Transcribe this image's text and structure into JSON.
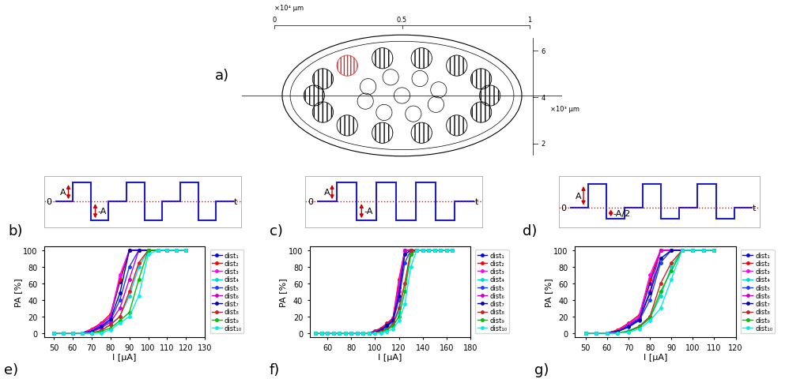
{
  "nerve_diagram": {
    "panel": "a)",
    "top_ticks": [
      0,
      0.5,
      1
    ],
    "top_unit": "×10⁴ μm",
    "side_ticks": [
      2,
      4,
      6
    ],
    "side_unit": "×10³ μm"
  },
  "waveforms": [
    {
      "panel": "b)",
      "levels": [
        0,
        1,
        -1,
        0,
        1,
        -1,
        0,
        1,
        -1,
        0
      ],
      "arrows": [
        {
          "label": "A",
          "value": 1
        },
        {
          "label": "-A",
          "value": -1
        }
      ],
      "zero_label": "0",
      "time_label": "t"
    },
    {
      "panel": "c)",
      "levels": [
        0,
        1,
        -1,
        1,
        -1,
        1,
        -1,
        0
      ],
      "arrows": [
        {
          "label": "A",
          "value": 1
        },
        {
          "label": "-A",
          "value": -1
        }
      ],
      "zero_label": "0",
      "time_label": "t"
    },
    {
      "panel": "d)",
      "levels": [
        0,
        1,
        -0.5,
        0,
        1,
        -0.5,
        0,
        1,
        -0.5,
        0
      ],
      "arrows": [
        {
          "label": "A",
          "value": 1
        },
        {
          "label": "-A/2",
          "value": -0.5
        }
      ],
      "zero_label": "0",
      "time_label": "t"
    }
  ],
  "chart_data": [
    {
      "type": "line",
      "panel": "e)",
      "x_label": "I [μA]",
      "y_label": "PA [%]",
      "x": [
        50,
        55,
        60,
        65,
        70,
        75,
        80,
        85,
        90,
        95,
        100,
        105,
        110,
        115,
        120
      ],
      "xlim": [
        45,
        130
      ],
      "xticks": [
        50,
        60,
        70,
        80,
        90,
        100,
        110,
        120,
        130
      ],
      "ylim": [
        -5,
        105
      ],
      "yticks": [
        0,
        20,
        40,
        60,
        80,
        100
      ],
      "grid": false,
      "legend": "right",
      "marker": "circle",
      "line_style": "solid",
      "series": [
        {
          "name": "dist₁",
          "color": "#0000ff",
          "values": [
            0,
            0,
            0,
            0,
            3,
            10,
            20,
            62,
            100,
            100,
            100,
            100,
            100,
            100,
            100
          ]
        },
        {
          "name": "dist₂",
          "color": "#ff0000",
          "values": [
            0,
            0,
            0,
            0,
            5,
            12,
            23,
            65,
            100,
            100,
            100,
            100,
            100,
            100,
            100
          ]
        },
        {
          "name": "dist₃",
          "color": "#ff00ff",
          "values": [
            0,
            0,
            0,
            0,
            4,
            11,
            20,
            70,
            100,
            100,
            100,
            100,
            100,
            100,
            100
          ]
        },
        {
          "name": "dist₄",
          "color": "#00d8d8",
          "values": [
            0,
            0,
            0,
            0,
            0,
            3,
            10,
            20,
            45,
            80,
            100,
            100,
            100,
            100,
            100
          ]
        },
        {
          "name": "dist₅",
          "color": "#1a3cff",
          "values": [
            0,
            0,
            0,
            0,
            2,
            7,
            15,
            40,
            80,
            100,
            100,
            100,
            100,
            100,
            100
          ]
        },
        {
          "name": "dist₆",
          "color": "#cc00cc",
          "values": [
            0,
            0,
            0,
            0,
            1,
            6,
            13,
            30,
            65,
            100,
            100,
            100,
            100,
            100,
            100
          ]
        },
        {
          "name": "dist₇",
          "color": "#0000b0",
          "values": [
            0,
            0,
            0,
            0,
            2,
            8,
            17,
            48,
            100,
            100,
            100,
            100,
            100,
            100,
            100
          ]
        },
        {
          "name": "dist₈",
          "color": "#d02020",
          "values": [
            0,
            0,
            0,
            0,
            0,
            3,
            10,
            20,
            50,
            85,
            100,
            100,
            100,
            100,
            100
          ]
        },
        {
          "name": "dist₉",
          "color": "#00c000",
          "values": [
            0,
            0,
            0,
            0,
            0,
            2,
            6,
            15,
            25,
            65,
            100,
            100,
            100,
            100,
            100
          ]
        },
        {
          "name": "dist₁₀",
          "color": "#00eeee",
          "values": [
            0,
            0,
            0,
            0,
            0,
            0,
            4,
            12,
            20,
            45,
            95,
            100,
            100,
            100,
            100
          ]
        }
      ]
    },
    {
      "type": "line",
      "panel": "f)",
      "x_label": "I [μA]",
      "y_label": "PA [%]",
      "x": [
        50,
        55,
        60,
        65,
        70,
        75,
        80,
        85,
        90,
        95,
        100,
        105,
        110,
        115,
        120,
        125,
        130,
        135,
        140,
        145,
        150,
        155,
        160,
        165
      ],
      "xlim": [
        45,
        180
      ],
      "xticks": [
        60,
        80,
        100,
        120,
        140,
        160,
        180
      ],
      "ylim": [
        -5,
        105
      ],
      "yticks": [
        0,
        20,
        40,
        60,
        80,
        100
      ],
      "grid": false,
      "legend": "right",
      "marker": "circle",
      "line_style": "solid",
      "series": [
        {
          "name": "dist₁",
          "color": "#0000ff",
          "values": [
            0,
            0,
            0,
            0,
            0,
            0,
            0,
            0,
            0,
            0,
            2,
            4,
            8,
            15,
            55,
            100,
            100,
            100,
            100,
            100,
            100,
            100,
            100,
            100
          ]
        },
        {
          "name": "dist₂",
          "color": "#ff0000",
          "values": [
            0,
            0,
            0,
            0,
            0,
            0,
            0,
            0,
            0,
            0,
            3,
            6,
            12,
            18,
            65,
            100,
            100,
            100,
            100,
            100,
            100,
            100,
            100,
            100
          ]
        },
        {
          "name": "dist₃",
          "color": "#ff00ff",
          "values": [
            0,
            0,
            0,
            0,
            0,
            0,
            0,
            0,
            0,
            0,
            2,
            5,
            10,
            16,
            60,
            100,
            100,
            100,
            100,
            100,
            100,
            100,
            100,
            100
          ]
        },
        {
          "name": "dist₄",
          "color": "#00d8d8",
          "values": [
            0,
            0,
            0,
            0,
            0,
            0,
            0,
            0,
            0,
            0,
            0,
            2,
            6,
            12,
            25,
            60,
            95,
            100,
            100,
            100,
            100,
            100,
            100,
            100
          ]
        },
        {
          "name": "dist₅",
          "color": "#1a3cff",
          "values": [
            0,
            0,
            0,
            0,
            0,
            0,
            0,
            0,
            0,
            0,
            1,
            3,
            8,
            14,
            40,
            85,
            100,
            100,
            100,
            100,
            100,
            100,
            100,
            100
          ]
        },
        {
          "name": "dist₆",
          "color": "#cc00cc",
          "values": [
            0,
            0,
            0,
            0,
            0,
            0,
            0,
            0,
            0,
            0,
            2,
            5,
            10,
            18,
            50,
            100,
            100,
            100,
            100,
            100,
            100,
            100,
            100,
            100
          ]
        },
        {
          "name": "dist₇",
          "color": "#0000b0",
          "values": [
            0,
            0,
            0,
            0,
            0,
            0,
            0,
            0,
            0,
            0,
            1,
            4,
            9,
            16,
            45,
            95,
            100,
            100,
            100,
            100,
            100,
            100,
            100,
            100
          ]
        },
        {
          "name": "dist₈",
          "color": "#d02020",
          "values": [
            0,
            0,
            0,
            0,
            0,
            0,
            0,
            0,
            0,
            0,
            0,
            2,
            5,
            10,
            30,
            60,
            100,
            100,
            100,
            100,
            100,
            100,
            100,
            100
          ]
        },
        {
          "name": "dist₉",
          "color": "#00c000",
          "values": [
            0,
            0,
            0,
            0,
            0,
            0,
            0,
            0,
            0,
            0,
            0,
            1,
            4,
            8,
            20,
            50,
            95,
            100,
            100,
            100,
            100,
            100,
            100,
            100
          ]
        },
        {
          "name": "dist₁₀",
          "color": "#00eeee",
          "values": [
            0,
            0,
            0,
            0,
            0,
            0,
            0,
            0,
            0,
            0,
            0,
            0,
            2,
            5,
            15,
            35,
            80,
            100,
            100,
            100,
            100,
            100,
            100,
            100
          ]
        }
      ]
    },
    {
      "type": "line",
      "panel": "g)",
      "x_label": "I [μA]",
      "y_label": "PA [%]",
      "x": [
        50,
        55,
        60,
        65,
        70,
        75,
        80,
        85,
        90,
        95,
        100,
        105,
        110
      ],
      "xlim": [
        45,
        120
      ],
      "xticks": [
        50,
        60,
        70,
        80,
        90,
        100,
        110,
        120
      ],
      "ylim": [
        -5,
        105
      ],
      "yticks": [
        0,
        20,
        40,
        60,
        80,
        100
      ],
      "grid": false,
      "legend": "right",
      "marker": "circle",
      "line_style": "solid",
      "series": [
        {
          "name": "dist₁",
          "color": "#0000ff",
          "values": [
            0,
            0,
            0,
            3,
            10,
            18,
            60,
            100,
            100,
            100,
            100,
            100,
            100
          ]
        },
        {
          "name": "dist₂",
          "color": "#ff0000",
          "values": [
            0,
            0,
            0,
            4,
            12,
            22,
            65,
            100,
            100,
            100,
            100,
            100,
            100
          ]
        },
        {
          "name": "dist₃",
          "color": "#ff00ff",
          "values": [
            0,
            0,
            0,
            3,
            11,
            20,
            70,
            100,
            100,
            100,
            100,
            100,
            100
          ]
        },
        {
          "name": "dist₄",
          "color": "#00d8d8",
          "values": [
            0,
            0,
            0,
            0,
            3,
            8,
            18,
            45,
            80,
            100,
            100,
            100,
            100
          ]
        },
        {
          "name": "dist₅",
          "color": "#1a3cff",
          "values": [
            0,
            0,
            0,
            2,
            7,
            15,
            40,
            85,
            100,
            100,
            100,
            100,
            100
          ]
        },
        {
          "name": "dist₆",
          "color": "#cc00cc",
          "values": [
            0,
            0,
            0,
            2,
            8,
            17,
            50,
            100,
            100,
            100,
            100,
            100,
            100
          ]
        },
        {
          "name": "dist₇",
          "color": "#0000b0",
          "values": [
            0,
            0,
            0,
            2,
            8,
            16,
            48,
            90,
            100,
            100,
            100,
            100,
            100
          ]
        },
        {
          "name": "dist₈",
          "color": "#d02020",
          "values": [
            0,
            0,
            0,
            0,
            2,
            8,
            20,
            60,
            85,
            100,
            100,
            100,
            100
          ]
        },
        {
          "name": "dist₉",
          "color": "#00c000",
          "values": [
            0,
            0,
            0,
            0,
            2,
            7,
            18,
            50,
            75,
            100,
            100,
            100,
            100
          ]
        },
        {
          "name": "dist₁₀",
          "color": "#00eeee",
          "values": [
            0,
            0,
            0,
            0,
            1,
            5,
            15,
            30,
            65,
            100,
            100,
            100,
            100
          ]
        }
      ]
    }
  ]
}
